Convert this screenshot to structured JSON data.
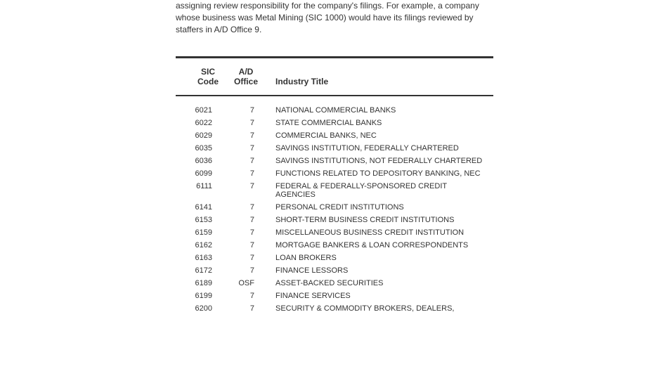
{
  "intro": {
    "text": "assigning review responsibility for the company's filings. For example, a company whose business was Metal Mining (SIC 1000) would have its filings reviewed by staffers in A/D Office 9."
  },
  "table": {
    "columns": {
      "sic": "SIC Code",
      "ad": "A/D Office",
      "title": "Industry Title"
    },
    "rows": [
      {
        "sic": "6021",
        "ad": "7",
        "title": "NATIONAL COMMERCIAL BANKS"
      },
      {
        "sic": "6022",
        "ad": "7",
        "title": "STATE COMMERCIAL BANKS"
      },
      {
        "sic": "6029",
        "ad": "7",
        "title": "COMMERCIAL BANKS, NEC"
      },
      {
        "sic": "6035",
        "ad": "7",
        "title": "SAVINGS INSTITUTION, FEDERALLY CHARTERED"
      },
      {
        "sic": "6036",
        "ad": "7",
        "title": "SAVINGS INSTITUTIONS, NOT FEDERALLY CHARTERED"
      },
      {
        "sic": "6099",
        "ad": "7",
        "title": "FUNCTIONS RELATED TO DEPOSITORY BANKING, NEC"
      },
      {
        "sic": "6111",
        "ad": "7",
        "title": "FEDERAL & FEDERALLY-SPONSORED CREDIT AGENCIES"
      },
      {
        "sic": "6141",
        "ad": "7",
        "title": "PERSONAL CREDIT INSTITUTIONS"
      },
      {
        "sic": "6153",
        "ad": "7",
        "title": "SHORT-TERM BUSINESS CREDIT INSTITUTIONS"
      },
      {
        "sic": "6159",
        "ad": "7",
        "title": "MISCELLANEOUS BUSINESS CREDIT INSTITUTION"
      },
      {
        "sic": "6162",
        "ad": "7",
        "title": "MORTGAGE BANKERS & LOAN CORRESPONDENTS"
      },
      {
        "sic": "6163",
        "ad": "7",
        "title": "LOAN BROKERS"
      },
      {
        "sic": "6172",
        "ad": "7",
        "title": "FINANCE LESSORS"
      },
      {
        "sic": "6189",
        "ad": "OSF",
        "title": "ASSET-BACKED SECURITIES"
      },
      {
        "sic": "6199",
        "ad": "7",
        "title": "FINANCE SERVICES"
      },
      {
        "sic": "6200",
        "ad": "7",
        "title": "SECURITY & COMMODITY BROKERS, DEALERS,"
      }
    ]
  }
}
